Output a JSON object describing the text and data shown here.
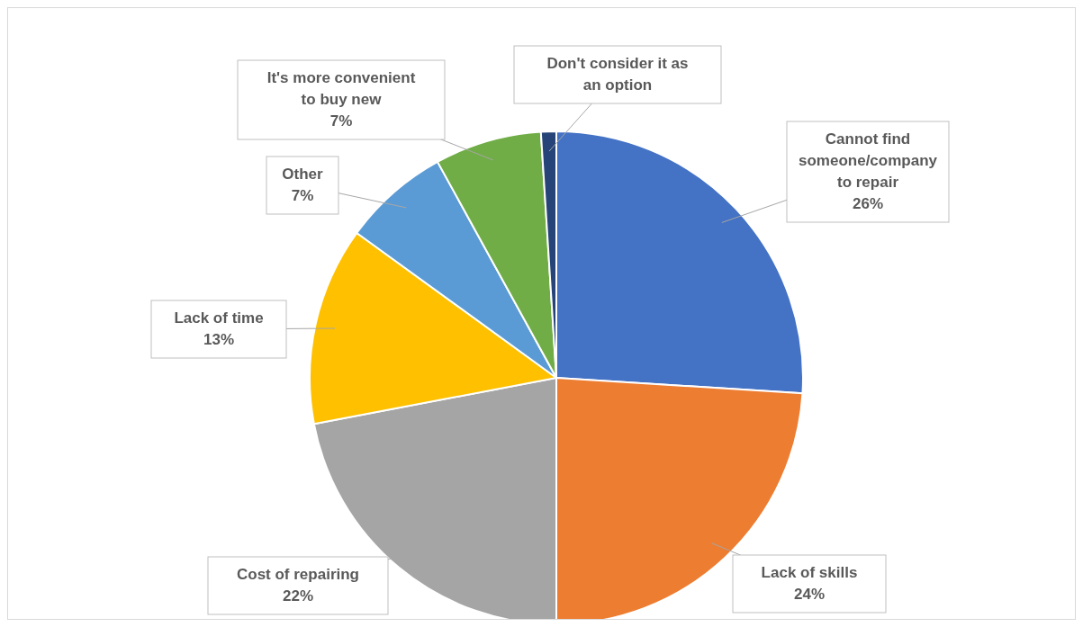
{
  "chart_data": {
    "type": "pie",
    "categories": [
      "Cannot find someone/company to repair",
      "Lack of skills",
      "Cost of repairing",
      "Lack of time",
      "Other",
      "It's more convenient to buy new",
      "Don't consider it as an option"
    ],
    "values": [
      26,
      24,
      22,
      13,
      7,
      7,
      1
    ],
    "colors": [
      "#4472c4",
      "#ed7d31",
      "#a5a5a5",
      "#ffc000",
      "#5b9bd5",
      "#70ad47",
      "#264478"
    ],
    "value_labels": [
      "26%",
      "24%",
      "22%",
      "13%",
      "7%",
      "7%",
      null
    ],
    "legend": false
  }
}
